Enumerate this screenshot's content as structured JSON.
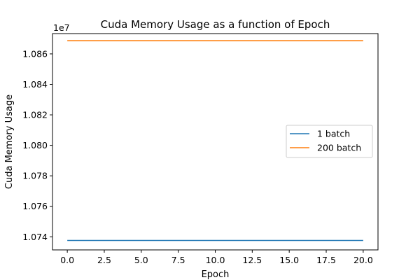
{
  "chart_data": {
    "type": "line",
    "title": "Cuda Memory Usage as a function of Epoch",
    "xlabel": "Epoch",
    "ylabel": "Cuda Memory Usage",
    "y_offset_label": "1e7",
    "xlim": [
      -1.0,
      21.0
    ],
    "ylim": [
      10731400,
      10873300
    ],
    "x_ticks": [
      0.0,
      2.5,
      5.0,
      7.5,
      10.0,
      12.5,
      15.0,
      17.5,
      20.0
    ],
    "x_tick_labels": [
      "0.0",
      "2.5",
      "5.0",
      "7.5",
      "10.0",
      "12.5",
      "15.0",
      "17.5",
      "20.0"
    ],
    "y_ticks": [
      10740000,
      10760000,
      10780000,
      10800000,
      10820000,
      10840000,
      10860000
    ],
    "y_tick_labels": [
      "1.074",
      "1.076",
      "1.078",
      "1.080",
      "1.082",
      "1.084",
      "1.086"
    ],
    "grid": false,
    "legend_position": "center-right",
    "x": [
      0,
      1,
      2,
      3,
      4,
      5,
      6,
      7,
      8,
      9,
      10,
      11,
      12,
      13,
      14,
      15,
      16,
      17,
      18,
      19,
      20
    ],
    "series": [
      {
        "name": "1 batch",
        "color": "#1f77b4",
        "values": [
          10737600,
          10737600,
          10737600,
          10737600,
          10737600,
          10737600,
          10737600,
          10737600,
          10737600,
          10737600,
          10737600,
          10737600,
          10737600,
          10737600,
          10737600,
          10737600,
          10737600,
          10737600,
          10737600,
          10737600,
          10737600
        ]
      },
      {
        "name": "200 batch",
        "color": "#ff7f0e",
        "values": [
          10868600,
          10868600,
          10868600,
          10868600,
          10868600,
          10868600,
          10868600,
          10868600,
          10868600,
          10868600,
          10868600,
          10868600,
          10868600,
          10868600,
          10868600,
          10868600,
          10868600,
          10868600,
          10868600,
          10868600,
          10868600
        ]
      }
    ]
  }
}
